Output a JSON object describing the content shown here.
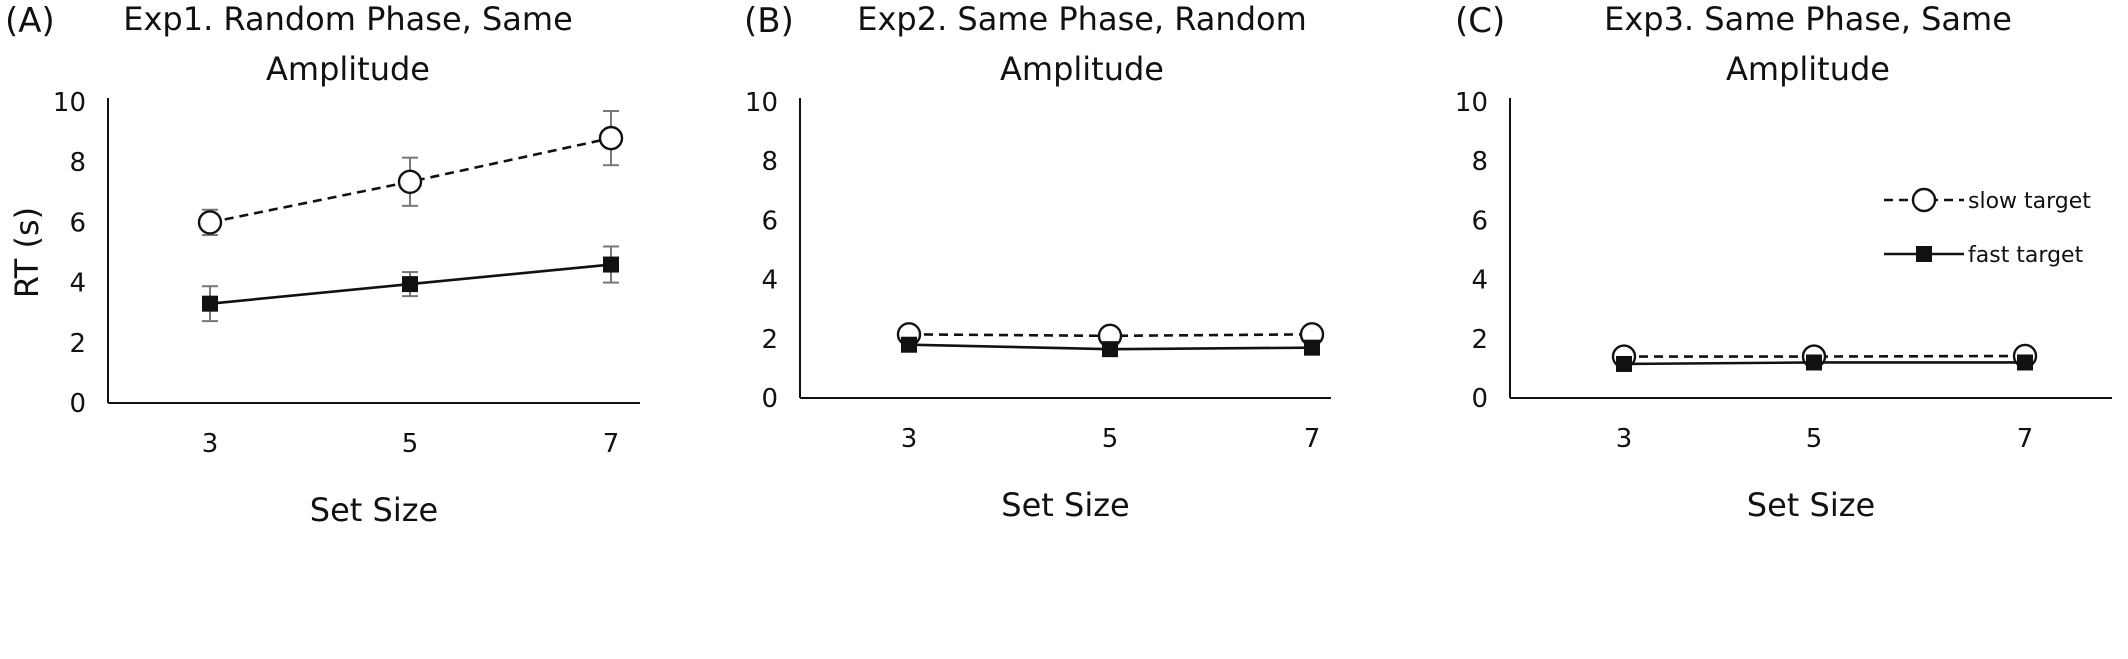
{
  "chart_data": [
    {
      "type": "line",
      "panel_label": "(A)",
      "title_lines": [
        "Exp1. Random Phase, Same",
        "Amplitude"
      ],
      "xlabel": "Set Size",
      "ylabel": "RT (s)",
      "categories": [
        "3",
        "5",
        "7"
      ],
      "y_ticks": [
        "0",
        "2",
        "4",
        "6",
        "8",
        "10"
      ],
      "ylim": [
        0,
        10
      ],
      "legend": false,
      "series": [
        {
          "key": "slow",
          "values": [
            6.0,
            7.35,
            8.8
          ],
          "err": [
            0.42,
            0.8,
            0.9
          ],
          "marker": "open-circle",
          "line": "dashed"
        },
        {
          "key": "fast",
          "values": [
            3.3,
            3.95,
            4.6
          ],
          "err": [
            0.58,
            0.4,
            0.6
          ],
          "marker": "filled-square",
          "line": "solid"
        }
      ]
    },
    {
      "type": "line",
      "panel_label": "(B)",
      "title_lines": [
        "Exp2. Same Phase, Random",
        "Amplitude"
      ],
      "xlabel": "Set Size",
      "ylabel": "",
      "categories": [
        "3",
        "5",
        "7"
      ],
      "y_ticks": [
        "0",
        "2",
        "4",
        "6",
        "8",
        "10"
      ],
      "ylim": [
        0,
        10
      ],
      "legend": false,
      "series": [
        {
          "key": "slow",
          "values": [
            2.15,
            2.1,
            2.15
          ],
          "err": [
            0.12,
            0.12,
            0.22
          ],
          "marker": "open-circle",
          "line": "dashed"
        },
        {
          "key": "fast",
          "values": [
            1.8,
            1.65,
            1.7
          ],
          "err": [
            0.08,
            0.08,
            0.08
          ],
          "marker": "filled-square",
          "line": "solid"
        }
      ]
    },
    {
      "type": "line",
      "panel_label": "(C)",
      "title_lines": [
        "Exp3. Same Phase, Same",
        "Amplitude"
      ],
      "xlabel": "Set Size",
      "ylabel": "",
      "categories": [
        "3",
        "5",
        "7"
      ],
      "y_ticks": [
        "0",
        "2",
        "4",
        "6",
        "8",
        "10"
      ],
      "ylim": [
        0,
        10
      ],
      "legend": true,
      "legend_position": "top-right",
      "series": [
        {
          "key": "slow",
          "name": "slow target",
          "values": [
            1.4,
            1.4,
            1.42
          ],
          "err": [
            0.05,
            0.05,
            0.05
          ],
          "marker": "open-circle",
          "line": "dashed"
        },
        {
          "key": "fast",
          "name": "fast target",
          "values": [
            1.15,
            1.2,
            1.2
          ],
          "err": [
            0.04,
            0.04,
            0.04
          ],
          "marker": "filled-square",
          "line": "solid"
        }
      ]
    }
  ]
}
